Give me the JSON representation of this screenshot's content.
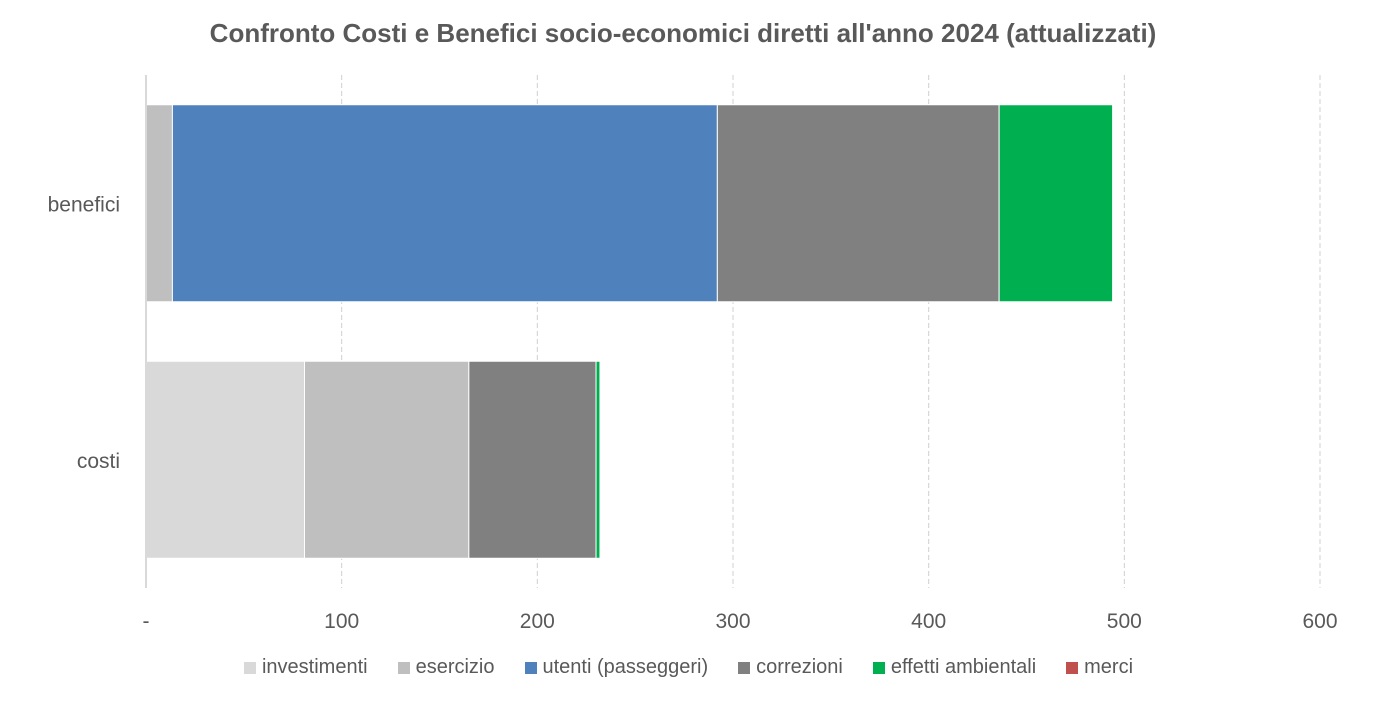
{
  "chart_data": {
    "type": "bar",
    "orientation": "horizontal",
    "stacked": true,
    "title": "Confronto Costi e Benefici socio-economici diretti all'anno 2024 (attualizzati)",
    "xlabel": "",
    "ylabel": "",
    "xlim": [
      0,
      600
    ],
    "x_ticks": [
      0,
      100,
      200,
      300,
      400,
      500,
      600
    ],
    "x_tick_labels": [
      "-",
      "100",
      "200",
      "300",
      "400",
      "500",
      "600"
    ],
    "categories": [
      "benefici",
      "costi"
    ],
    "grid": "vertical dashed",
    "legend_position": "bottom",
    "series": [
      {
        "name": "investimenti",
        "color": "#D9D9D9",
        "values": [
          0,
          81
        ]
      },
      {
        "name": "esercizio",
        "color": "#BFBFBF",
        "values": [
          13.5,
          84
        ]
      },
      {
        "name": "utenti (passeggeri)",
        "color": "#4F81BD",
        "values": [
          278.5,
          0
        ]
      },
      {
        "name": "correzioni",
        "color": "#808080",
        "values": [
          144,
          65
        ]
      },
      {
        "name": "effetti ambientali",
        "color": "#00B050",
        "values": [
          58,
          2
        ]
      },
      {
        "name": "merci",
        "color": "#C0504D",
        "values": [
          0,
          0
        ]
      }
    ]
  }
}
